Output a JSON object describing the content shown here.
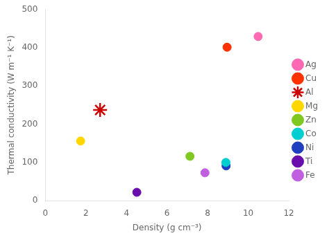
{
  "chart_data": {
    "type": "scatter",
    "xlabel": "Density (g cm⁻³)",
    "ylabel": "Thermal conductivity (W m⁻¹ K⁻¹)",
    "series": [
      {
        "name": "Ag",
        "color": "#FF69B4",
        "marker": "circle",
        "x": [
          10.49
        ],
        "values": [
          429
        ]
      },
      {
        "name": "Cu",
        "color": "#FF3300",
        "marker": "circle",
        "x": [
          8.96
        ],
        "values": [
          401
        ]
      },
      {
        "name": "Al",
        "color": "#CC0000",
        "marker": "star",
        "x": [
          2.7
        ],
        "values": [
          237
        ]
      },
      {
        "name": "Mg",
        "color": "#FFD700",
        "marker": "circle",
        "x": [
          1.74
        ],
        "values": [
          156
        ]
      },
      {
        "name": "Zn",
        "color": "#7EC820",
        "marker": "circle",
        "x": [
          7.13
        ],
        "values": [
          116
        ]
      },
      {
        "name": "Co",
        "color": "#00CED1",
        "marker": "circle",
        "x": [
          8.9
        ],
        "values": [
          100
        ]
      },
      {
        "name": "Ni",
        "color": "#1E3FBF",
        "marker": "circle",
        "x": [
          8.91
        ],
        "values": [
          91
        ]
      },
      {
        "name": "Ti",
        "color": "#6A0DAD",
        "marker": "circle",
        "x": [
          4.51
        ],
        "values": [
          22
        ]
      },
      {
        "name": "Fe",
        "color": "#C060E0",
        "marker": "circle",
        "x": [
          7.87
        ],
        "values": [
          73
        ]
      }
    ],
    "xlim": [
      0,
      12
    ],
    "ylim": [
      0,
      500
    ],
    "xticks": [
      0,
      2,
      4,
      6,
      8,
      10,
      12
    ],
    "yticks": [
      0,
      100,
      200,
      300,
      400,
      500
    ],
    "grid": false,
    "legend": "right"
  }
}
